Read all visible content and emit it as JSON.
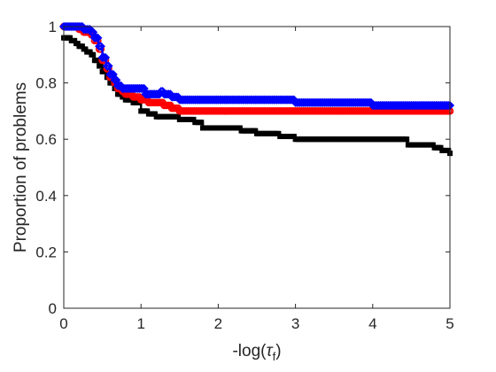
{
  "chart_data": {
    "type": "line",
    "xlabel": "-log(τf)",
    "xlabel_parts": {
      "prefix": "-log(",
      "symbol": "τ",
      "subscript": "f",
      "suffix": ")"
    },
    "ylabel": "Proportion of problems",
    "xlim": [
      0,
      5
    ],
    "ylim": [
      0,
      1
    ],
    "x_ticks": [
      "0",
      "1",
      "2",
      "3",
      "4",
      "5"
    ],
    "y_ticks": [
      "0",
      "0.2",
      "0.4",
      "0.6",
      "0.8",
      "1"
    ],
    "grid": false,
    "legend": "none",
    "series": [
      {
        "color": "#000000",
        "marker": "square",
        "points": [
          [
            0,
            0.96
          ],
          [
            0.05,
            0.96
          ],
          [
            0.1,
            0.95
          ],
          [
            0.15,
            0.94
          ],
          [
            0.2,
            0.93
          ],
          [
            0.25,
            0.92
          ],
          [
            0.3,
            0.91
          ],
          [
            0.35,
            0.9
          ],
          [
            0.4,
            0.88
          ],
          [
            0.45,
            0.86
          ],
          [
            0.5,
            0.84
          ],
          [
            0.55,
            0.82
          ],
          [
            0.6,
            0.8
          ],
          [
            0.65,
            0.78
          ],
          [
            0.7,
            0.76
          ],
          [
            0.75,
            0.75
          ],
          [
            0.8,
            0.74
          ],
          [
            0.9,
            0.73
          ],
          [
            1.0,
            0.7
          ],
          [
            1.1,
            0.69
          ],
          [
            1.2,
            0.68
          ],
          [
            1.3,
            0.68
          ],
          [
            1.5,
            0.67
          ],
          [
            1.7,
            0.66
          ],
          [
            1.8,
            0.64
          ],
          [
            2.0,
            0.64
          ],
          [
            2.2,
            0.64
          ],
          [
            2.3,
            0.63
          ],
          [
            2.5,
            0.62
          ],
          [
            2.7,
            0.62
          ],
          [
            2.8,
            0.61
          ],
          [
            3.0,
            0.6
          ],
          [
            3.5,
            0.6
          ],
          [
            4.0,
            0.6
          ],
          [
            4.4,
            0.6
          ],
          [
            4.45,
            0.58
          ],
          [
            4.6,
            0.58
          ],
          [
            4.8,
            0.57
          ],
          [
            4.9,
            0.56
          ],
          [
            5.0,
            0.55
          ]
        ]
      },
      {
        "color": "#ff0000",
        "marker": "circle",
        "points": [
          [
            0,
            1.0
          ],
          [
            0.05,
            1.0
          ],
          [
            0.1,
            1.0
          ],
          [
            0.15,
            1.0
          ],
          [
            0.2,
            0.99
          ],
          [
            0.25,
            0.98
          ],
          [
            0.3,
            0.98
          ],
          [
            0.35,
            0.97
          ],
          [
            0.4,
            0.95
          ],
          [
            0.45,
            0.92
          ],
          [
            0.5,
            0.88
          ],
          [
            0.55,
            0.85
          ],
          [
            0.6,
            0.82
          ],
          [
            0.65,
            0.8
          ],
          [
            0.7,
            0.78
          ],
          [
            0.75,
            0.77
          ],
          [
            0.8,
            0.76
          ],
          [
            0.9,
            0.75
          ],
          [
            1.0,
            0.74
          ],
          [
            1.1,
            0.73
          ],
          [
            1.2,
            0.73
          ],
          [
            1.3,
            0.72
          ],
          [
            1.4,
            0.71
          ],
          [
            1.5,
            0.7
          ],
          [
            2.0,
            0.7
          ],
          [
            3.0,
            0.7
          ],
          [
            4.0,
            0.7
          ],
          [
            5.0,
            0.7
          ]
        ]
      },
      {
        "color": "#0000ff",
        "marker": "diamond",
        "points": [
          [
            0,
            1.0
          ],
          [
            0.05,
            1.0
          ],
          [
            0.1,
            1.0
          ],
          [
            0.15,
            1.0
          ],
          [
            0.2,
            1.0
          ],
          [
            0.25,
            0.99
          ],
          [
            0.3,
            0.99
          ],
          [
            0.35,
            0.98
          ],
          [
            0.4,
            0.96
          ],
          [
            0.45,
            0.93
          ],
          [
            0.5,
            0.89
          ],
          [
            0.55,
            0.86
          ],
          [
            0.6,
            0.83
          ],
          [
            0.65,
            0.81
          ],
          [
            0.7,
            0.79
          ],
          [
            0.75,
            0.78
          ],
          [
            0.8,
            0.78
          ],
          [
            0.9,
            0.78
          ],
          [
            1.0,
            0.78
          ],
          [
            1.05,
            0.76
          ],
          [
            1.1,
            0.76
          ],
          [
            1.2,
            0.76
          ],
          [
            1.25,
            0.77
          ],
          [
            1.3,
            0.76
          ],
          [
            1.4,
            0.75
          ],
          [
            1.5,
            0.74
          ],
          [
            2.0,
            0.74
          ],
          [
            2.5,
            0.74
          ],
          [
            3.0,
            0.73
          ],
          [
            3.5,
            0.73
          ],
          [
            4.0,
            0.72
          ],
          [
            4.5,
            0.72
          ],
          [
            5.0,
            0.72
          ]
        ]
      }
    ]
  }
}
